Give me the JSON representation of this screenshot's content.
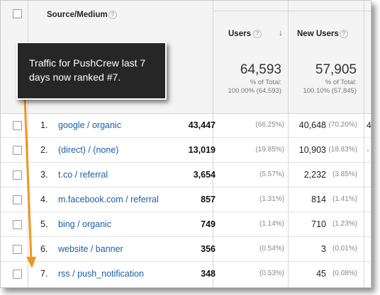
{
  "header": {
    "source_medium": "Source/Medium",
    "users": "Users",
    "new_users": "New Users"
  },
  "totals": {
    "users_value": "64,593",
    "users_pct_label": "% of Total:",
    "users_pct": "100.00% (64,593)",
    "new_users_value": "57,905",
    "new_users_pct_label": "% of Total:",
    "new_users_pct": "100.10% (57,845)"
  },
  "tooltip": "Traffic for PushCrew last 7 days now ranked #7.",
  "rows": [
    {
      "num": "1.",
      "source": "google / organic",
      "users": "43,447",
      "users_pct": "(66.25%)",
      "new_users": "40,648",
      "new_users_pct": "(70.20%)",
      "edge": "4"
    },
    {
      "num": "2.",
      "source": "(direct) / (none)",
      "users": "13,019",
      "users_pct": "(19.85%)",
      "new_users": "10,903",
      "new_users_pct": "(18.83%)",
      "edge": "·"
    },
    {
      "num": "3.",
      "source": "t.co / referral",
      "users": "3,654",
      "users_pct": "(5.57%)",
      "new_users": "2,232",
      "new_users_pct": "(3.85%)",
      "edge": ""
    },
    {
      "num": "4.",
      "source": "m.facebook.com / referral",
      "users": "857",
      "users_pct": "(1.31%)",
      "new_users": "814",
      "new_users_pct": "(1.41%)",
      "edge": ""
    },
    {
      "num": "5.",
      "source": "bing / organic",
      "users": "749",
      "users_pct": "(1.14%)",
      "new_users": "710",
      "new_users_pct": "(1.23%)",
      "edge": ""
    },
    {
      "num": "6.",
      "source": "website / banner",
      "users": "356",
      "users_pct": "(0.54%)",
      "new_users": "3",
      "new_users_pct": "(0.01%)",
      "edge": ""
    },
    {
      "num": "7.",
      "source": "rss / push_notification",
      "users": "348",
      "users_pct": "(0.53%)",
      "new_users": "45",
      "new_users_pct": "(0.08%)",
      "edge": ""
    }
  ],
  "colors": {
    "link": "#1a5ea8",
    "arrow": "#f0961e",
    "tooltip_bg": "#262626"
  }
}
